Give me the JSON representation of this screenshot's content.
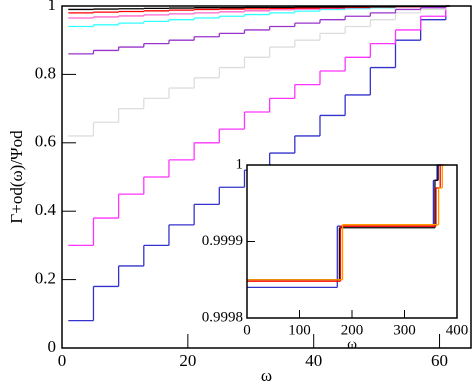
{
  "chart_data": [
    {
      "type": "step",
      "xlabel": "ω",
      "ylabel": "Γ+od(ω)/Ψod",
      "xlim": [
        0,
        65
      ],
      "xticks": [
        0,
        20,
        40,
        60
      ],
      "ylim": [
        0,
        1
      ],
      "yticks": [
        0,
        0.2,
        0.4,
        0.6,
        0.8,
        1
      ],
      "x": [
        1,
        5,
        9,
        13,
        17,
        21,
        25,
        29,
        33,
        37,
        41,
        45,
        49,
        53,
        57,
        61
      ],
      "series": [
        {
          "color": "#3333cc",
          "values": [
            0.08,
            0.18,
            0.24,
            0.3,
            0.36,
            0.42,
            0.47,
            0.52,
            0.57,
            0.62,
            0.68,
            0.74,
            0.82,
            0.9,
            0.96,
            1.0
          ]
        },
        {
          "color": "#ff33ff",
          "values": [
            0.3,
            0.38,
            0.45,
            0.5,
            0.55,
            0.6,
            0.64,
            0.69,
            0.73,
            0.77,
            0.81,
            0.85,
            0.89,
            0.93,
            0.97,
            1.0
          ]
        },
        {
          "color": "#dddddd",
          "values": [
            0.62,
            0.66,
            0.7,
            0.73,
            0.76,
            0.79,
            0.82,
            0.85,
            0.88,
            0.9,
            0.92,
            0.94,
            0.96,
            0.98,
            0.99,
            1.0
          ]
        },
        {
          "color": "#9933cc",
          "values": [
            0.86,
            0.87,
            0.88,
            0.89,
            0.9,
            0.91,
            0.92,
            0.93,
            0.94,
            0.95,
            0.96,
            0.97,
            0.98,
            0.99,
            0.995,
            1.0
          ]
        },
        {
          "color": "#33ffff",
          "values": [
            0.94,
            0.945,
            0.95,
            0.955,
            0.96,
            0.965,
            0.97,
            0.975,
            0.98,
            0.985,
            0.99,
            0.992,
            0.995,
            0.997,
            0.999,
            1.0
          ]
        },
        {
          "color": "#ff66cc",
          "values": [
            0.965,
            0.968,
            0.971,
            0.974,
            0.977,
            0.98,
            0.983,
            0.986,
            0.989,
            0.991,
            0.993,
            0.995,
            0.997,
            0.998,
            0.999,
            1.0
          ]
        },
        {
          "color": "#ff0000",
          "values": [
            0.98,
            0.982,
            0.984,
            0.986,
            0.988,
            0.99,
            0.991,
            0.992,
            0.993,
            0.994,
            0.995,
            0.996,
            0.997,
            0.998,
            0.999,
            1.0
          ]
        },
        {
          "color": "#000000",
          "values": [
            0.99,
            0.991,
            0.992,
            0.993,
            0.994,
            0.995,
            0.995,
            0.996,
            0.996,
            0.997,
            0.997,
            0.998,
            0.998,
            0.999,
            0.999,
            1.0
          ]
        }
      ]
    },
    {
      "type": "step",
      "xlabel": "ω",
      "xlim": [
        0,
        400
      ],
      "xticks": [
        0,
        100,
        200,
        300,
        400
      ],
      "ylim": [
        0.9998,
        1
      ],
      "yticks": [
        0.9998,
        0.9999,
        1
      ],
      "series": [
        {
          "color": "#3333cc",
          "x": [
            0,
            172,
            355,
            362
          ],
          "values": [
            0.99984,
            0.99992,
            0.99998,
            1
          ]
        },
        {
          "color": "#000000",
          "x": [
            0,
            176,
            358,
            364
          ],
          "values": [
            0.99985,
            0.999918,
            0.99998,
            1
          ]
        },
        {
          "color": "#ff0000",
          "x": [
            0,
            178,
            360,
            368
          ],
          "values": [
            0.999848,
            0.99992,
            0.99997,
            1
          ]
        },
        {
          "color": "#ff9900",
          "x": [
            0,
            182,
            365,
            372
          ],
          "values": [
            0.99985,
            0.999922,
            0.99997,
            1
          ]
        }
      ]
    }
  ]
}
